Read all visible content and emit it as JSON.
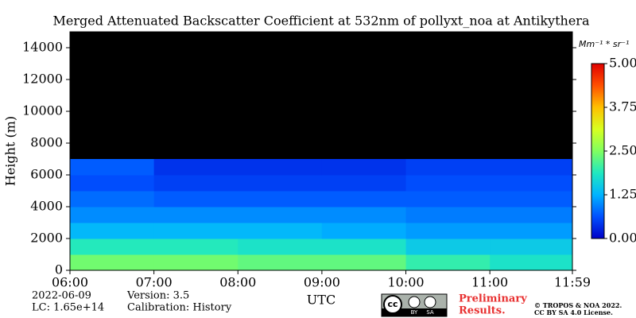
{
  "chart_data": {
    "type": "heatmap",
    "title": "Merged Attenuated Backscatter Coefficient at 532nm of pollyxt_noa at Antikythera",
    "ylabel": "Height (m)",
    "xlabel": "UTC",
    "xbins": [
      6,
      7,
      8,
      9,
      10,
      11,
      11.983
    ],
    "ybins": [
      0,
      1000,
      2000,
      3000,
      4000,
      5000,
      6000,
      7000
    ],
    "values": [
      [
        2.4,
        2.4,
        2.3,
        2.3,
        2.0,
        1.8
      ],
      [
        1.9,
        1.9,
        1.8,
        1.8,
        1.5,
        1.5
      ],
      [
        1.3,
        1.3,
        1.3,
        1.2,
        1.1,
        1.1
      ],
      [
        1.0,
        1.0,
        1.0,
        1.0,
        0.9,
        0.9
      ],
      [
        0.8,
        0.7,
        0.7,
        0.7,
        0.7,
        0.7
      ],
      [
        0.6,
        0.5,
        0.5,
        0.5,
        0.6,
        0.6
      ],
      [
        0.7,
        0.4,
        0.4,
        0.4,
        0.5,
        0.5
      ]
    ],
    "xlim": [
      6,
      11.983
    ],
    "ylim": [
      0,
      15000
    ],
    "xticks": [
      {
        "value": 6,
        "label": "06:00"
      },
      {
        "value": 7,
        "label": "07:00"
      },
      {
        "value": 8,
        "label": "08:00"
      },
      {
        "value": 9,
        "label": "09:00"
      },
      {
        "value": 10,
        "label": "10:00"
      },
      {
        "value": 11,
        "label": "11:00"
      },
      {
        "value": 11.983,
        "label": "11:59"
      }
    ],
    "yticks": [
      0,
      2000,
      4000,
      6000,
      8000,
      10000,
      12000,
      14000
    ],
    "background": "#000000",
    "colorbar": {
      "label": "Mm⁻¹ * sr⁻¹",
      "lim": [
        0,
        5
      ],
      "ticks": [
        {
          "value": 0,
          "label": "0.00"
        },
        {
          "value": 1.25,
          "label": "1.25"
        },
        {
          "value": 2.5,
          "label": "2.50"
        },
        {
          "value": 3.75,
          "label": "3.75"
        },
        {
          "value": 5,
          "label": "5.00"
        }
      ],
      "colormap": [
        "#0000c8",
        "#0050ff",
        "#00b4ff",
        "#20e8c0",
        "#80ff60",
        "#d8ff20",
        "#ffc000",
        "#ff5000",
        "#e00000"
      ]
    }
  },
  "footer": {
    "date": "2022-06-09",
    "lc": "LC: 1.65e+14",
    "version": "Version: 3.5",
    "calibration": "Calibration: History",
    "preliminary": "Preliminary",
    "results": "Results.",
    "copyright": "© TROPOS & NOA 2022.",
    "license": "CC BY SA 4.0 License.",
    "logo": {
      "cc": "cc",
      "by": "BY",
      "sa": "SA"
    }
  }
}
